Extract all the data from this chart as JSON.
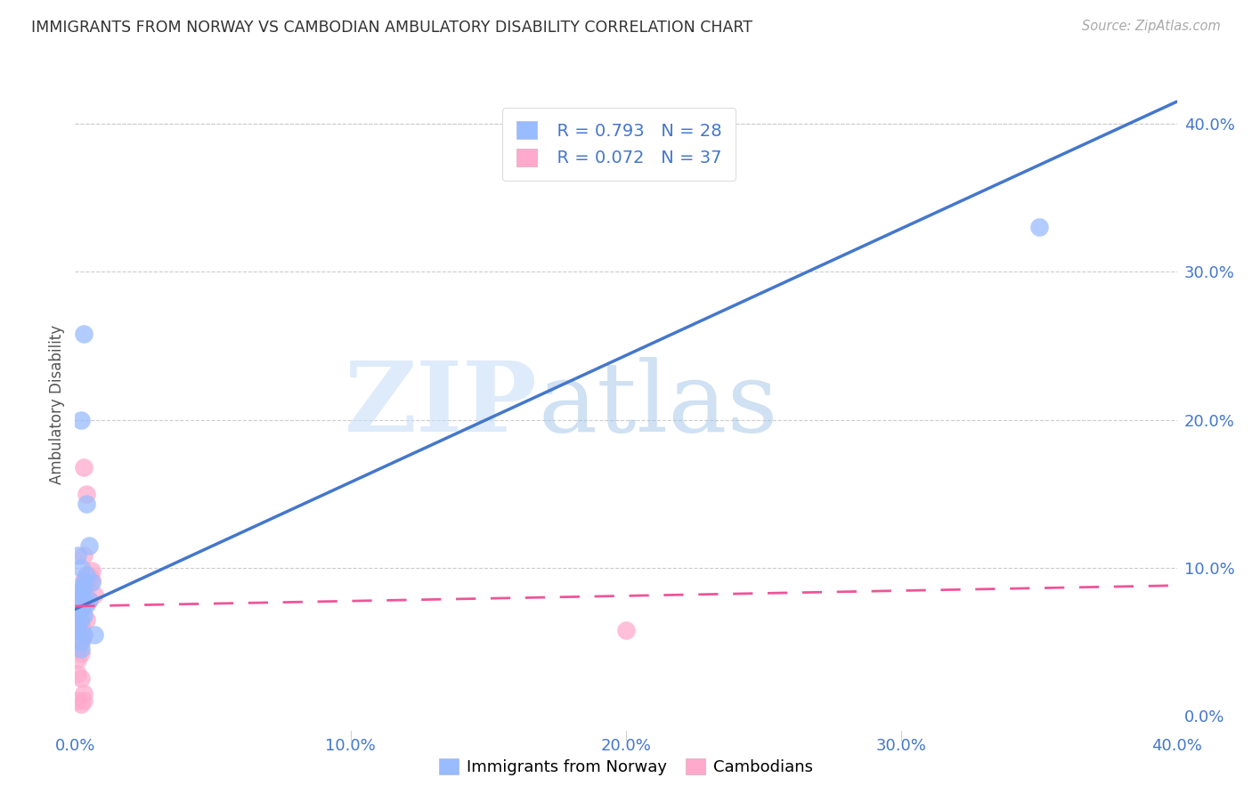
{
  "title": "IMMIGRANTS FROM NORWAY VS CAMBODIAN AMBULATORY DISABILITY CORRELATION CHART",
  "source": "Source: ZipAtlas.com",
  "ylabel": "Ambulatory Disability",
  "xlim": [
    0.0,
    0.4
  ],
  "ylim": [
    -0.01,
    0.43
  ],
  "xticks": [
    0.0,
    0.1,
    0.2,
    0.3,
    0.4
  ],
  "yticks_right": [
    0.0,
    0.1,
    0.2,
    0.3,
    0.4
  ],
  "watermark_zip": "ZIP",
  "watermark_atlas": "atlas",
  "legend_R1": "R = 0.793",
  "legend_N1": "N = 28",
  "legend_R2": "R = 0.072",
  "legend_N2": "N = 37",
  "legend_label1": "Immigrants from Norway",
  "legend_label2": "Cambodians",
  "blue_scatter_color": "#99bbff",
  "pink_scatter_color": "#ffaacc",
  "blue_line_color": "#4477cc",
  "pink_line_color": "#ee5599",
  "blue_text_color": "#4477cc",
  "norway_x": [
    0.001,
    0.002,
    0.001,
    0.003,
    0.002,
    0.001,
    0.003,
    0.002,
    0.001,
    0.002,
    0.003,
    0.004,
    0.002,
    0.001,
    0.003,
    0.004,
    0.002,
    0.003,
    0.001,
    0.002,
    0.005,
    0.006,
    0.004,
    0.003,
    0.007,
    0.35,
    0.002,
    0.005
  ],
  "norway_y": [
    0.075,
    0.082,
    0.068,
    0.088,
    0.072,
    0.06,
    0.09,
    0.065,
    0.07,
    0.085,
    0.078,
    0.095,
    0.1,
    0.108,
    0.055,
    0.143,
    0.2,
    0.258,
    0.058,
    0.045,
    0.078,
    0.09,
    0.075,
    0.068,
    0.055,
    0.33,
    0.05,
    0.115
  ],
  "cambodian_x": [
    0.001,
    0.002,
    0.001,
    0.002,
    0.001,
    0.003,
    0.001,
    0.002,
    0.002,
    0.003,
    0.004,
    0.005,
    0.003,
    0.002,
    0.004,
    0.003,
    0.005,
    0.006,
    0.004,
    0.003,
    0.002,
    0.001,
    0.002,
    0.003,
    0.003,
    0.002,
    0.001,
    0.004,
    0.006,
    0.007,
    0.004,
    0.002,
    0.2,
    0.003,
    0.001,
    0.002,
    0.003
  ],
  "cambodian_y": [
    0.068,
    0.062,
    0.055,
    0.072,
    0.048,
    0.08,
    0.045,
    0.058,
    0.052,
    0.075,
    0.088,
    0.095,
    0.108,
    0.072,
    0.065,
    0.092,
    0.078,
    0.098,
    0.09,
    0.085,
    0.05,
    0.038,
    0.06,
    0.055,
    0.168,
    0.042,
    0.028,
    0.092,
    0.092,
    0.082,
    0.15,
    0.025,
    0.058,
    0.015,
    0.01,
    0.008,
    0.01
  ],
  "norway_line_x0": 0.0,
  "norway_line_y0": 0.072,
  "norway_line_x1": 0.4,
  "norway_line_y1": 0.415,
  "cambodian_line_x0": 0.0,
  "cambodian_line_y0": 0.074,
  "cambodian_line_x1": 0.4,
  "cambodian_line_y1": 0.088
}
